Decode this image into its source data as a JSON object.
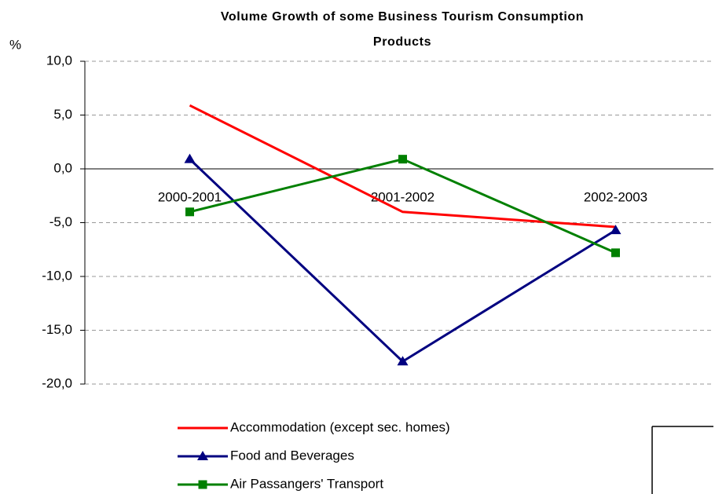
{
  "chart_data": {
    "type": "line",
    "title": "Volume Growth of some Business Tourism Consumption Products",
    "y_label": "%",
    "categories": [
      "2000-2001",
      "2001-2002",
      "2002-2003"
    ],
    "series": [
      {
        "name": "Accommodation (except sec. homes)",
        "color": "#ff0000",
        "values": [
          5.9,
          -4.0,
          -5.4
        ]
      },
      {
        "name": "Food and Beverages",
        "color": "#000080",
        "marker": "triangle",
        "values": [
          0.9,
          -17.9,
          -5.7
        ]
      },
      {
        "name": "Air Passangers' Transport",
        "color": "#008000",
        "marker": "square",
        "values": [
          -4.0,
          0.9,
          -7.8
        ]
      }
    ],
    "ylim": [
      -20,
      10
    ],
    "yticks": [
      {
        "value": -20,
        "label": "-20,0"
      },
      {
        "value": -15,
        "label": "-15,0"
      },
      {
        "value": -10,
        "label": "-10,0"
      },
      {
        "value": -5,
        "label": "-5,0"
      },
      {
        "value": 0,
        "label": "0,0"
      },
      {
        "value": 5,
        "label": "5,0"
      },
      {
        "value": 10,
        "label": "10,0"
      }
    ],
    "grid": true,
    "legend": "bottom"
  }
}
